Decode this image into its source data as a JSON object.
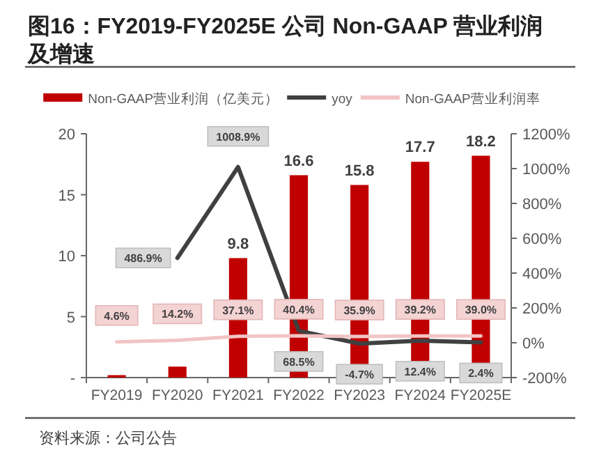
{
  "chart_data": {
    "type": "bar",
    "title": "图16：FY2019-FY2025E 公司 Non-GAAP 营业利润及增速",
    "categories": [
      "FY2019",
      "FY2020",
      "FY2021",
      "FY2022",
      "FY2023",
      "FY2024",
      "FY2025E"
    ],
    "series": [
      {
        "name": "Non-GAAP营业利润（亿美元）",
        "color": "#c00000",
        "values": [
          0.2,
          0.9,
          9.8,
          16.6,
          15.8,
          17.7,
          18.2
        ],
        "value_labels": [
          null,
          null,
          "9.8",
          "16.6",
          "15.8",
          "17.7",
          "18.2"
        ]
      },
      {
        "name": "yoy",
        "type": "line",
        "axis": "y2",
        "color": "#404040",
        "values": [
          null,
          486.9,
          1008.9,
          68.5,
          -4.7,
          12.4,
          2.4
        ],
        "value_labels": [
          null,
          "486.9%",
          "1008.9%",
          "68.5%",
          "-4.7%",
          "12.4%",
          "2.4%"
        ]
      },
      {
        "name": "Non-GAAP营业利润率",
        "type": "line",
        "axis": "y2",
        "color": "#f2c4c4",
        "values": [
          4.6,
          14.2,
          37.1,
          40.4,
          35.9,
          39.2,
          39.0
        ],
        "value_labels": [
          "4.6%",
          "14.2%",
          "37.1%",
          "40.4%",
          "35.9%",
          "39.2%",
          "39.0%"
        ]
      }
    ],
    "ylim": [
      0,
      20
    ],
    "yticks": [
      {
        "value": 0,
        "label": "-"
      },
      5,
      10,
      15,
      20
    ],
    "y2lim": [
      -200,
      1200
    ],
    "y2ticks": [
      {
        "value": -200,
        "label": "-200%"
      },
      {
        "value": 0,
        "label": "0%"
      },
      {
        "value": 200,
        "label": "200%"
      },
      {
        "value": 400,
        "label": "400%"
      },
      {
        "value": 600,
        "label": "600%"
      },
      {
        "value": 800,
        "label": "800%"
      },
      {
        "value": 1000,
        "label": "1000%"
      },
      {
        "value": 1200,
        "label": "1200%"
      }
    ],
    "legend": "top",
    "grid": false,
    "annotations": [
      "资料来源：公司公告"
    ]
  }
}
